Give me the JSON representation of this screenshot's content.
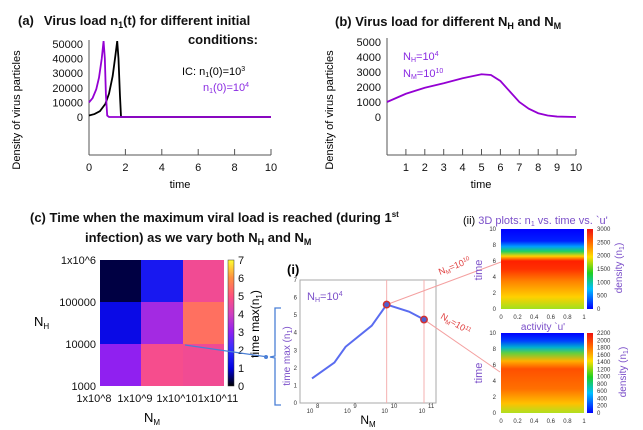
{
  "colors": {
    "black_curve": "#000000",
    "purple_curve": "#9400d3",
    "line_i": "#5a6cf0",
    "marker": "#d23030",
    "bracket": "#4a7fd6",
    "annotation": "#e85050",
    "label_purple": "#7b4fc9"
  },
  "panel_a": {
    "tag": "(a)",
    "title_1": "Virus load n",
    "title_sub": "1",
    "title_2": "(t) for different initial",
    "title_3": "conditions:",
    "legend_ic": "IC: n",
    "legend_sub": "1",
    "legend_ic_rest": "(0)=10",
    "legend_exp1": "3",
    "legend2_n": "n",
    "legend2_sub": "1",
    "legend2_rest": "(0)=10",
    "legend_exp2": "4",
    "ylabel": "Density of virus particles",
    "xlabel": "time"
  },
  "panel_b": {
    "title_1": "(b) Virus load for different N",
    "title_sub1": "H",
    "title_2": " and N",
    "title_sub2": "M",
    "note1_n": "N",
    "note1_sub": "H",
    "note1_val": "=10",
    "note1_exp": "4",
    "note2_n": "N",
    "note2_sub": "M",
    "note2_val": "=10",
    "note2_exp": "10",
    "ylabel": "Density of virus particles",
    "xlabel": "time"
  },
  "panel_c": {
    "title_1": "(c) Time when the maximum viral load is reached (during 1",
    "title_sup": "st",
    "title_2": "infection) as we vary both N",
    "title_sub1": "H",
    "title_3": " and N",
    "title_sub2": "M",
    "ylabel": "N",
    "ylabel_sub": "H",
    "xlabel": "N",
    "xlabel_sub": "M",
    "cbar_label": "time max(n",
    "cbar_sub": "1",
    "cbar_close": ")"
  },
  "panel_i": {
    "tag": "(i)",
    "note_n": "N",
    "note_sub": "H",
    "note_val": "=10",
    "note_exp": "4",
    "ylabel": "time max (n",
    "ylabel_sub": "1",
    "ylabel_close": ")",
    "xlabel": "N",
    "xlabel_sub": "M"
  },
  "panel_ii": {
    "title_tag": "(ii)",
    "title": "3D plots: n",
    "title_sub": "1",
    "title_2": " vs. time vs. `u'",
    "ylabel": "time",
    "xlabel": "activity `u'",
    "cbar_label": "density (n",
    "cbar_sub": "1",
    "cbar_close": ")",
    "ann1_n": "N",
    "ann1_sub": "M",
    "ann1_val": "=10",
    "ann1_exp": "10",
    "ann2_n": "N",
    "ann2_sub": "M",
    "ann2_val": "=10",
    "ann2_exp": "11"
  },
  "chart_data": [
    {
      "id": "a",
      "type": "line",
      "xlim": [
        0,
        10
      ],
      "ylim": [
        0,
        50000
      ],
      "xticks": [
        "0",
        "2",
        "4",
        "6",
        "8",
        "10"
      ],
      "yticks": [
        "0",
        "10000",
        "20000",
        "30000",
        "40000",
        "50000"
      ],
      "series": [
        {
          "name": "IC: n1(0)=10^3",
          "color": "#000000",
          "x": [
            0,
            0.3,
            0.6,
            0.9,
            1.1,
            1.3,
            1.45,
            1.55,
            1.62,
            1.7,
            1.76,
            2,
            10
          ],
          "y": [
            1000,
            2000,
            4000,
            9000,
            16000,
            28000,
            42000,
            52000,
            40000,
            15000,
            0,
            0,
            0
          ]
        },
        {
          "name": "n1(0)=10^4",
          "color": "#9400d3",
          "x": [
            0,
            0.2,
            0.4,
            0.55,
            0.7,
            0.8,
            0.87,
            0.93,
            1.0,
            1.1,
            10
          ],
          "y": [
            10000,
            13000,
            19000,
            27000,
            40000,
            52000,
            40000,
            15000,
            1000,
            0,
            0
          ]
        }
      ]
    },
    {
      "id": "b",
      "type": "line",
      "xlim": [
        0,
        10
      ],
      "ylim": [
        0,
        5000
      ],
      "xticks": [
        "1",
        "2",
        "3",
        "4",
        "5",
        "6",
        "7",
        "8",
        "9",
        "10"
      ],
      "yticks": [
        "0",
        "1000",
        "2000",
        "3000",
        "4000",
        "5000"
      ],
      "series": [
        {
          "color": "#9400d3",
          "x": [
            0,
            1,
            2,
            3,
            4,
            5,
            5.5,
            6,
            6.5,
            7,
            7.5,
            8,
            8.5,
            9,
            10
          ],
          "y": [
            1000,
            1550,
            1950,
            2250,
            2580,
            2850,
            2800,
            2400,
            1700,
            1000,
            550,
            250,
            100,
            30,
            0
          ]
        }
      ]
    },
    {
      "id": "c",
      "type": "heatmap",
      "x_categories": [
        "1x10^8",
        "1x10^9",
        "1x10^10",
        "1x10^11"
      ],
      "y_categories": [
        "1000",
        "10000",
        "100000",
        "1x10^6"
      ],
      "x_tick_labels": [
        "1x10",
        "8",
        "1x10",
        "9",
        "1x10",
        "10",
        "1x10",
        "11"
      ],
      "y_tick_labels": [
        "1000",
        "10000",
        "100000",
        "1x10",
        "6"
      ],
      "values": [
        [
          3.0,
          4.8,
          4.7
        ],
        [
          1.2,
          3.3,
          5.5
        ],
        [
          0.3,
          1.5,
          4.7
        ]
      ],
      "colorbar": {
        "range": [
          0,
          7
        ],
        "ticks": [
          "0",
          "1",
          "2",
          "3",
          "4",
          "5",
          "6",
          "7"
        ]
      }
    },
    {
      "id": "i",
      "type": "line",
      "xscale": "log",
      "xlim": [
        8,
        11
      ],
      "ylim": [
        0,
        7
      ],
      "xticks": [
        "10",
        "8",
        "10",
        "9",
        "10",
        "10",
        "10",
        "11"
      ],
      "yticks": [
        "0",
        "1",
        "2",
        "3",
        "4",
        "5",
        "6",
        "7"
      ],
      "series": [
        {
          "color": "#5a6cf0",
          "x": [
            8,
            8.6,
            8.9,
            9.6,
            10,
            10.6,
            11
          ],
          "y": [
            1.4,
            2.3,
            3.2,
            4.4,
            5.6,
            5.2,
            4.75
          ]
        }
      ],
      "highlighted": [
        {
          "x": 10,
          "y": 5.6
        },
        {
          "x": 11,
          "y": 4.75
        }
      ]
    },
    {
      "id": "ii_top",
      "type": "heatmap",
      "colormap": "jet",
      "xlim": [
        0,
        1
      ],
      "ylim": [
        0,
        10
      ],
      "xticks": [
        "0",
        "0.2",
        "0.4",
        "0.6",
        "0.8",
        "1"
      ],
      "yticks": [
        "0",
        "2",
        "4",
        "6",
        "8",
        "10"
      ],
      "colorbar": {
        "range": [
          0,
          3000
        ],
        "ticks": [
          "0",
          "500",
          "1000",
          "1500",
          "2000",
          "2500",
          "3000"
        ]
      }
    },
    {
      "id": "ii_bottom",
      "type": "heatmap",
      "colormap": "jet",
      "xlim": [
        0,
        1
      ],
      "ylim": [
        0,
        10
      ],
      "xticks": [
        "0",
        "0.2",
        "0.4",
        "0.6",
        "0.8",
        "1"
      ],
      "yticks": [
        "0",
        "2",
        "4",
        "6",
        "8",
        "10"
      ],
      "colorbar": {
        "range": [
          0,
          2200
        ],
        "ticks": [
          "0",
          "200",
          "400",
          "600",
          "800",
          "1000",
          "1200",
          "1400",
          "1600",
          "1800",
          "2000",
          "2200"
        ]
      }
    }
  ]
}
